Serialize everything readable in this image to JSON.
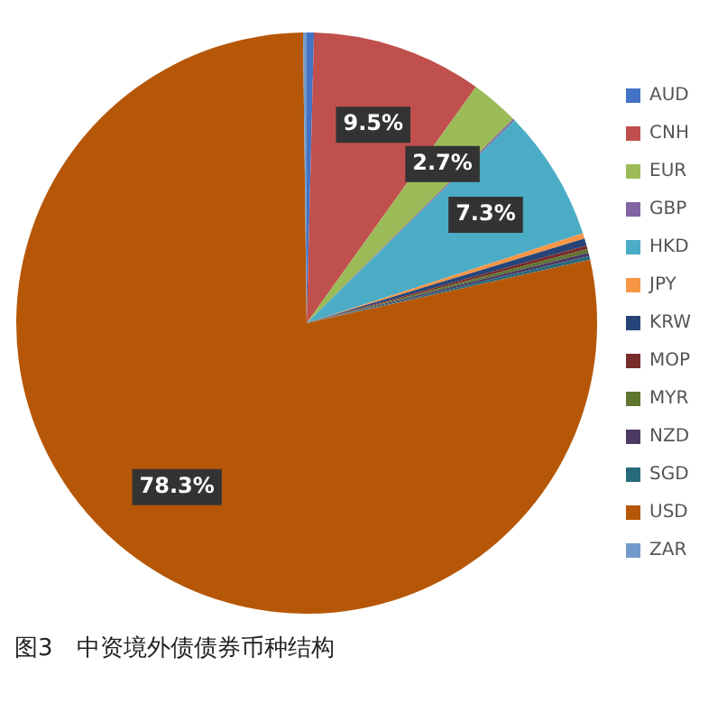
{
  "chart_data": {
    "type": "pie",
    "title": "图3　中资境外债债券币种结构",
    "categories": [
      "AUD",
      "CNH",
      "EUR",
      "GBP",
      "HKD",
      "JPY",
      "KRW",
      "MOP",
      "MYR",
      "NZD",
      "SGD",
      "USD",
      "ZAR"
    ],
    "values": [
      0.4,
      9.5,
      2.7,
      0.1,
      7.3,
      0.3,
      0.4,
      0.2,
      0.2,
      0.2,
      0.2,
      78.3,
      0.2
    ],
    "value_labels": [
      null,
      "9.5%",
      "2.7%",
      null,
      "7.3%",
      null,
      null,
      null,
      null,
      null,
      null,
      "78.3%",
      null
    ],
    "colors": [
      "#4472c4",
      "#c0504d",
      "#9bbb59",
      "#8064a2",
      "#4bacc6",
      "#f79646",
      "#264478",
      "#772c2a",
      "#5f7530",
      "#4c3b62",
      "#276a7c",
      "#b65708",
      "#729aca"
    ],
    "legend": "right"
  }
}
